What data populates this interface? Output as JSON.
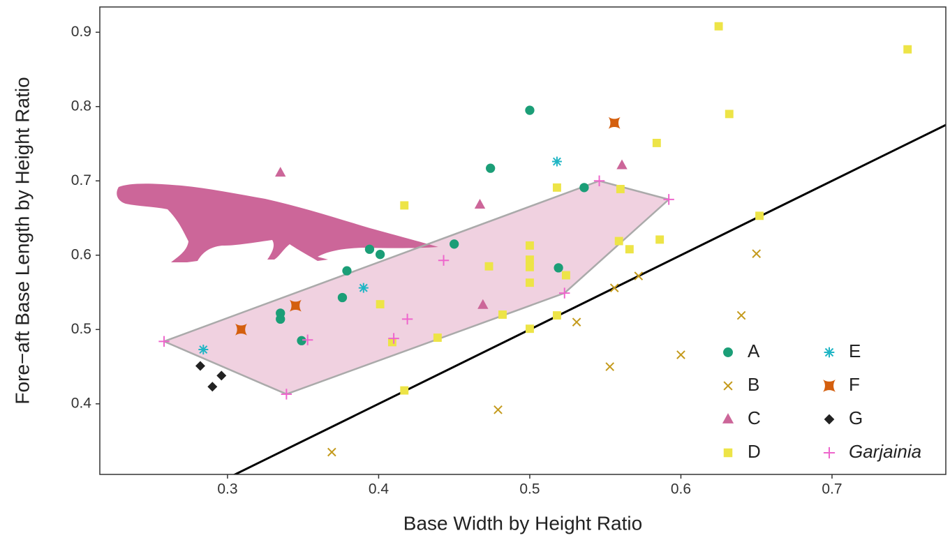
{
  "chart_data": {
    "type": "scatter",
    "x_label": "Base Width by Height Ratio",
    "y_label": "Fore−aft Base Length by Height Ratio",
    "xlim": [
      0.2155,
      0.7753
    ],
    "ylim": [
      0.305,
      0.934
    ],
    "xticks": [
      0.3,
      0.4,
      0.5,
      0.6,
      0.7
    ],
    "yticks": [
      0.4,
      0.5,
      0.6,
      0.7,
      0.8,
      0.9
    ],
    "grid": false,
    "legend": "bottom-right",
    "reference_line": {
      "slope": 1,
      "intercept": 0,
      "color": "#000000"
    },
    "hull": {
      "series": "Garjainia",
      "color": "#cc6699"
    },
    "series": [
      {
        "name": "A",
        "color": "#1b9e77",
        "marker": "circle",
        "x": [
          0.5,
          0.474,
          0.536,
          0.45,
          0.394,
          0.401,
          0.379,
          0.519,
          0.376,
          0.335,
          0.335,
          0.349
        ],
        "values": [
          0.795,
          0.717,
          0.691,
          0.615,
          0.608,
          0.601,
          0.579,
          0.583,
          0.543,
          0.522,
          0.514,
          0.485
        ]
      },
      {
        "name": "B",
        "color": "#c49a1c",
        "marker": "x",
        "x": [
          0.65,
          0.572,
          0.556,
          0.531,
          0.64,
          0.6,
          0.553,
          0.479,
          0.369
        ],
        "values": [
          0.602,
          0.572,
          0.556,
          0.51,
          0.519,
          0.466,
          0.45,
          0.392,
          0.335
        ]
      },
      {
        "name": "C",
        "color": "#cc6699",
        "marker": "triangle",
        "x": [
          0.335,
          0.561,
          0.467,
          0.469
        ],
        "values": [
          0.711,
          0.721,
          0.668,
          0.533
        ]
      },
      {
        "name": "D",
        "color": "#ede447",
        "marker": "square",
        "x": [
          0.625,
          0.75,
          0.632,
          0.584,
          0.417,
          0.518,
          0.56,
          0.652,
          0.586,
          0.559,
          0.566,
          0.5,
          0.5,
          0.5,
          0.473,
          0.524,
          0.5,
          0.401,
          0.482,
          0.518,
          0.5,
          0.439,
          0.409,
          0.417
        ],
        "values": [
          0.908,
          0.877,
          0.79,
          0.751,
          0.667,
          0.691,
          0.689,
          0.653,
          0.621,
          0.619,
          0.608,
          0.613,
          0.594,
          0.584,
          0.585,
          0.573,
          0.563,
          0.534,
          0.52,
          0.519,
          0.501,
          0.489,
          0.483,
          0.418
        ]
      },
      {
        "name": "E",
        "color": "#1fb5c4",
        "marker": "asterisk",
        "x": [
          0.518,
          0.39,
          0.284
        ],
        "values": [
          0.726,
          0.556,
          0.473
        ]
      },
      {
        "name": "F",
        "color": "#d45f0e",
        "marker": "star",
        "x": [
          0.556,
          0.345,
          0.309
        ],
        "values": [
          0.778,
          0.532,
          0.5
        ]
      },
      {
        "name": "G",
        "color": "#222222",
        "marker": "diamond",
        "x": [
          0.282,
          0.29,
          0.296
        ],
        "values": [
          0.451,
          0.423,
          0.438
        ]
      },
      {
        "name": "Garjainia",
        "color": "#ee66cc",
        "marker": "plus",
        "x": [
          0.258,
          0.339,
          0.353,
          0.41,
          0.419,
          0.443,
          0.523,
          0.546,
          0.592
        ],
        "values": [
          0.484,
          0.413,
          0.486,
          0.488,
          0.514,
          0.593,
          0.549,
          0.7,
          0.675
        ]
      }
    ]
  }
}
